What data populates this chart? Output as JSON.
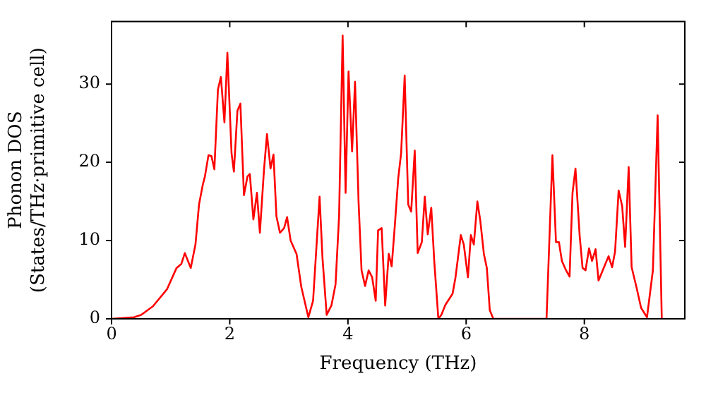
{
  "chart_data": {
    "type": "line",
    "xlabel": "Frequency (THz)",
    "ylabel": "Phonon DOS\n(States/THz·primitive cell)",
    "xlim": [
      0,
      9.7
    ],
    "ylim": [
      0,
      38
    ],
    "xticks": [
      0,
      2,
      4,
      6,
      8
    ],
    "yticks": [
      0,
      10,
      20,
      30
    ],
    "grid": false,
    "legend": false,
    "marker": "none",
    "line_style": "solid",
    "series": [
      {
        "color": "#ff0000",
        "x": [
          0,
          0.38,
          0.5,
          0.7,
          0.94,
          1.1,
          1.18,
          1.24,
          1.34,
          1.42,
          1.48,
          1.54,
          1.58,
          1.64,
          1.69,
          1.74,
          1.8,
          1.85,
          1.91,
          1.96,
          2.03,
          2.07,
          2.13,
          2.18,
          2.24,
          2.3,
          2.34,
          2.4,
          2.46,
          2.51,
          2.58,
          2.63,
          2.69,
          2.74,
          2.79,
          2.85,
          2.92,
          2.97,
          3.03,
          3.13,
          3.21,
          3.33,
          3.41,
          3.52,
          3.57,
          3.64,
          3.72,
          3.79,
          3.85,
          3.91,
          3.96,
          4.01,
          4.07,
          4.12,
          4.18,
          4.23,
          4.29,
          4.35,
          4.41,
          4.47,
          4.51,
          4.57,
          4.63,
          4.69,
          4.74,
          4.79,
          4.85,
          4.9,
          4.96,
          5.02,
          5.07,
          5.13,
          5.18,
          5.25,
          5.3,
          5.35,
          5.41,
          5.46,
          5.53,
          5.58,
          5.65,
          5.77,
          5.82,
          5.91,
          5.96,
          6.03,
          6.08,
          6.13,
          6.19,
          6.24,
          6.3,
          6.35,
          6.4,
          6.46,
          7.36,
          7.46,
          7.52,
          7.57,
          7.62,
          7.69,
          7.75,
          7.8,
          7.85,
          7.92,
          7.97,
          8.02,
          8.08,
          8.13,
          8.19,
          8.24,
          8.36,
          8.41,
          8.47,
          8.52,
          8.58,
          8.64,
          8.69,
          8.75,
          8.8,
          8.88,
          8.96,
          9.06,
          9.16,
          9.24,
          9.31
        ],
        "values": [
          0,
          0.2,
          0.5,
          1.6,
          3.8,
          6.5,
          7.0,
          8.4,
          6.5,
          9.5,
          14.6,
          17,
          18.2,
          20.9,
          20.8,
          19.1,
          29.3,
          30.9,
          25.1,
          34,
          21.2,
          18.8,
          26.6,
          27.5,
          15.8,
          18.2,
          18.5,
          12.7,
          16.1,
          11,
          19.1,
          23.6,
          19.2,
          21,
          13.1,
          11,
          11.6,
          13,
          10,
          8.3,
          4.1,
          0.2,
          2.3,
          15.6,
          7.7,
          0.5,
          1.7,
          4.4,
          13.1,
          36.2,
          16.1,
          31.6,
          21.4,
          30.3,
          14.9,
          6.2,
          4.2,
          6.2,
          5.3,
          2.3,
          11.3,
          11.6,
          1.7,
          8.3,
          6.7,
          11.6,
          17.9,
          21.2,
          31.1,
          14.6,
          13.7,
          21.5,
          8.4,
          9.8,
          15.6,
          10.8,
          14.2,
          7.4,
          0,
          0.5,
          1.8,
          3.2,
          5.3,
          10.7,
          9.5,
          5.3,
          10.7,
          9.5,
          15,
          12.5,
          8.3,
          6.5,
          1.1,
          0,
          0,
          20.9,
          9.8,
          9.8,
          7.4,
          6.2,
          5.4,
          16.1,
          19.2,
          10.7,
          6.5,
          6.2,
          9,
          7.4,
          8.9,
          4.9,
          7.1,
          8,
          6.6,
          8.6,
          16.4,
          14.4,
          9.2,
          19.4,
          6.6,
          4.1,
          1.4,
          0.2,
          6.2,
          26,
          0
        ]
      }
    ]
  }
}
